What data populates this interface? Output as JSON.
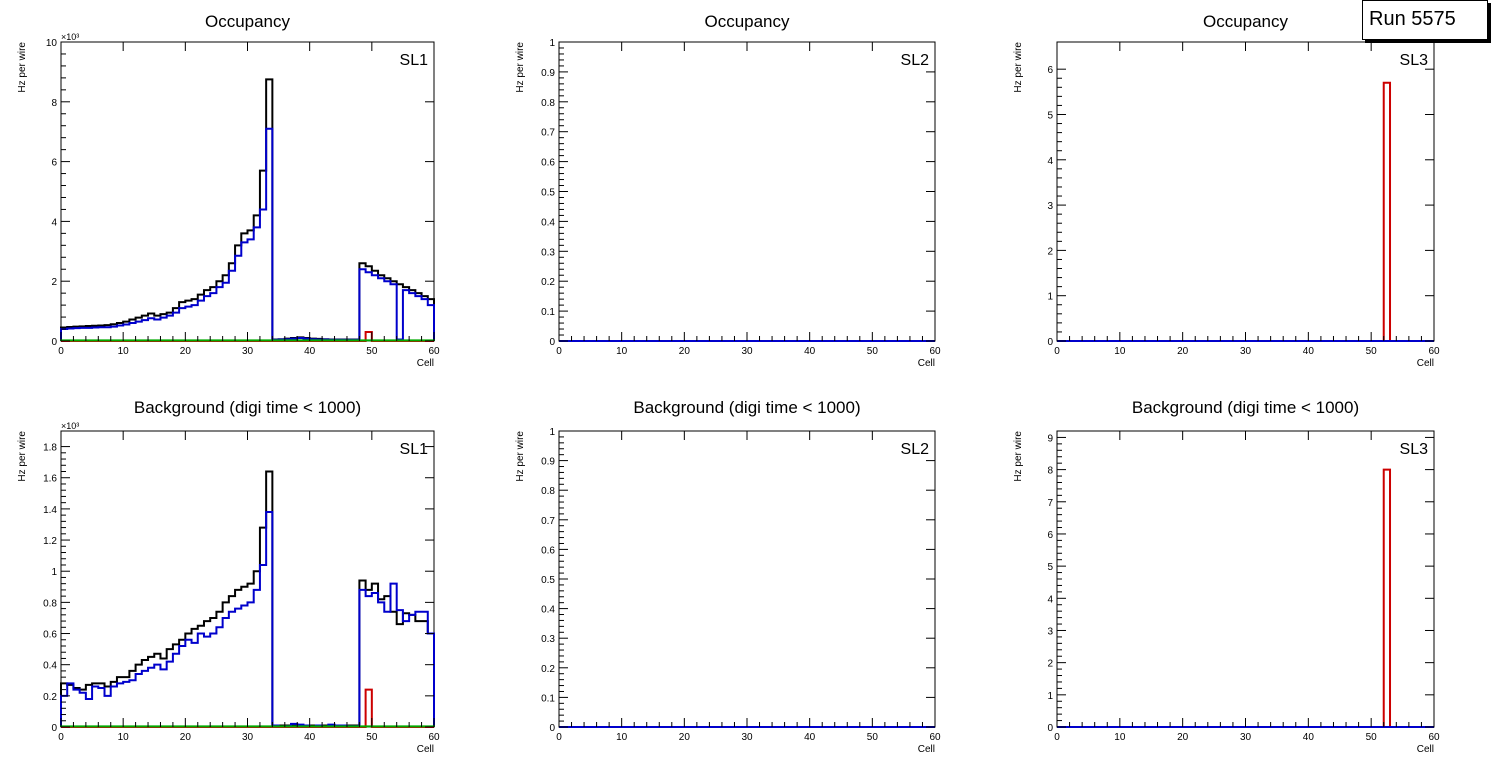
{
  "run_label": "Run 5575",
  "colors": {
    "total": "#000000",
    "blue": "#0000cc",
    "red": "#cc0000",
    "green": "#00aa00"
  },
  "chart_data": [
    {
      "type": "histogram",
      "title": "Occupancy",
      "panel_label": "SL1",
      "xlabel": "Cell",
      "ylabel": "Hz per wire",
      "exponent_label": "×10³",
      "xlim": [
        0,
        60
      ],
      "ylim": [
        0,
        10
      ],
      "xticks": [
        0,
        10,
        20,
        30,
        40,
        50,
        60
      ],
      "yticks": [
        0,
        2,
        4,
        6,
        8,
        10
      ],
      "x_start": 0,
      "bin_width": 1,
      "series": [
        {
          "name": "total",
          "color": "#000000",
          "values": [
            0.45,
            0.47,
            0.48,
            0.49,
            0.5,
            0.51,
            0.52,
            0.53,
            0.56,
            0.6,
            0.65,
            0.72,
            0.78,
            0.85,
            0.92,
            0.85,
            0.9,
            0.95,
            1.1,
            1.3,
            1.35,
            1.4,
            1.55,
            1.7,
            1.8,
            2.0,
            2.2,
            2.6,
            3.2,
            3.6,
            3.7,
            4.2,
            5.7,
            8.75,
            0.05,
            0.06,
            0.08,
            0.1,
            0.12,
            0.1,
            0.08,
            0.07,
            0.06,
            0.05,
            0.05,
            0.05,
            0.05,
            0.05,
            2.6,
            2.5,
            2.35,
            2.2,
            2.1,
            2.0,
            1.9,
            1.8,
            1.7,
            1.6,
            1.5,
            1.4
          ]
        },
        {
          "name": "blue",
          "color": "#0000cc",
          "values": [
            0.4,
            0.42,
            0.43,
            0.44,
            0.44,
            0.45,
            0.46,
            0.46,
            0.48,
            0.52,
            0.55,
            0.6,
            0.65,
            0.7,
            0.76,
            0.72,
            0.78,
            0.85,
            0.95,
            1.1,
            1.15,
            1.2,
            1.35,
            1.5,
            1.6,
            1.8,
            1.95,
            2.35,
            2.85,
            3.3,
            3.4,
            3.8,
            4.4,
            7.1,
            0.04,
            0.05,
            0.06,
            0.08,
            0.1,
            0.08,
            0.06,
            0.05,
            0.05,
            0.04,
            0.04,
            0.04,
            0.04,
            0.04,
            2.4,
            2.3,
            2.2,
            2.1,
            2.0,
            1.9,
            0.05,
            1.7,
            1.6,
            1.5,
            1.4,
            1.2
          ]
        },
        {
          "name": "red",
          "color": "#cc0000",
          "values": [
            0,
            0,
            0,
            0,
            0,
            0,
            0,
            0,
            0,
            0,
            0,
            0,
            0,
            0,
            0,
            0,
            0,
            0,
            0,
            0,
            0,
            0,
            0,
            0,
            0,
            0,
            0,
            0,
            0,
            0,
            0,
            0,
            0,
            0,
            0,
            0,
            0,
            0,
            0,
            0,
            0,
            0,
            0,
            0,
            0,
            0,
            0,
            0,
            0,
            0.3,
            0,
            0,
            0,
            0,
            0,
            0,
            0,
            0,
            0,
            0
          ]
        },
        {
          "name": "green",
          "color": "#00aa00",
          "values": [
            0.02,
            0.02,
            0.02,
            0.02,
            0.02,
            0.02,
            0.02,
            0.02,
            0.02,
            0.02,
            0.02,
            0.02,
            0.02,
            0.02,
            0.02,
            0.02,
            0.02,
            0.02,
            0.02,
            0.02,
            0.02,
            0.02,
            0.02,
            0.02,
            0.02,
            0.02,
            0.02,
            0.02,
            0.02,
            0.02,
            0.02,
            0.02,
            0.02,
            0.02,
            0.02,
            0.02,
            0.02,
            0.02,
            0.02,
            0.02,
            0.02,
            0.02,
            0.02,
            0.02,
            0.02,
            0.02,
            0.02,
            0.02,
            0.02,
            0.02,
            0.02,
            0.02,
            0.02,
            0.02,
            0.02,
            0.02,
            0.02,
            0.02,
            0.02,
            0.02
          ]
        }
      ]
    },
    {
      "type": "histogram",
      "title": "Occupancy",
      "panel_label": "SL2",
      "xlabel": "Cell",
      "ylabel": "Hz per wire",
      "exponent_label": "",
      "xlim": [
        0,
        60
      ],
      "ylim": [
        0,
        1
      ],
      "xticks": [
        0,
        10,
        20,
        30,
        40,
        50,
        60
      ],
      "yticks": [
        0,
        0.1,
        0.2,
        0.3,
        0.4,
        0.5,
        0.6,
        0.7,
        0.8,
        0.9,
        1
      ],
      "x_start": 0,
      "bin_width": 1,
      "series": [
        {
          "name": "blue",
          "color": "#0000cc",
          "values": [
            0,
            0,
            0,
            0,
            0,
            0,
            0,
            0,
            0,
            0,
            0,
            0,
            0,
            0,
            0,
            0,
            0,
            0,
            0,
            0,
            0,
            0,
            0,
            0,
            0,
            0,
            0,
            0,
            0,
            0,
            0,
            0,
            0,
            0,
            0,
            0,
            0,
            0,
            0,
            0,
            0,
            0,
            0,
            0,
            0,
            0,
            0,
            0,
            0,
            0,
            0,
            0,
            0,
            0,
            0,
            0,
            0,
            0,
            0,
            0
          ]
        }
      ]
    },
    {
      "type": "histogram",
      "title": "Occupancy",
      "panel_label": "SL3",
      "xlabel": "Cell",
      "ylabel": "Hz per wire",
      "exponent_label": "",
      "xlim": [
        0,
        60
      ],
      "ylim": [
        0,
        6.6
      ],
      "xticks": [
        0,
        10,
        20,
        30,
        40,
        50,
        60
      ],
      "yticks": [
        0,
        1,
        2,
        3,
        4,
        5,
        6
      ],
      "x_start": 0,
      "bin_width": 1,
      "series": [
        {
          "name": "red",
          "color": "#cc0000",
          "values": [
            0,
            0,
            0,
            0,
            0,
            0,
            0,
            0,
            0,
            0,
            0,
            0,
            0,
            0,
            0,
            0,
            0,
            0,
            0,
            0,
            0,
            0,
            0,
            0,
            0,
            0,
            0,
            0,
            0,
            0,
            0,
            0,
            0,
            0,
            0,
            0,
            0,
            0,
            0,
            0,
            0,
            0,
            0,
            0,
            0,
            0,
            0,
            0,
            0,
            0,
            0,
            0,
            5.7,
            0,
            0,
            0,
            0,
            0,
            0,
            0
          ]
        },
        {
          "name": "blue",
          "color": "#0000cc",
          "values": [
            0,
            0,
            0,
            0,
            0,
            0,
            0,
            0,
            0,
            0,
            0,
            0,
            0,
            0,
            0,
            0,
            0,
            0,
            0,
            0,
            0,
            0,
            0,
            0,
            0,
            0,
            0,
            0,
            0,
            0,
            0,
            0,
            0,
            0,
            0,
            0,
            0,
            0,
            0,
            0,
            0,
            0,
            0,
            0,
            0,
            0,
            0,
            0,
            0,
            0,
            0,
            0,
            0,
            0,
            0,
            0,
            0,
            0,
            0,
            0
          ]
        }
      ]
    },
    {
      "type": "histogram",
      "title": "Background (digi time < 1000)",
      "panel_label": "SL1",
      "xlabel": "Cell",
      "ylabel": "Hz per wire",
      "exponent_label": "×10³",
      "xlim": [
        0,
        60
      ],
      "ylim": [
        0,
        1.9
      ],
      "xticks": [
        0,
        10,
        20,
        30,
        40,
        50,
        60
      ],
      "yticks": [
        0,
        0.2,
        0.4,
        0.6,
        0.8,
        1,
        1.2,
        1.4,
        1.6,
        1.8
      ],
      "x_start": 0,
      "bin_width": 1,
      "series": [
        {
          "name": "total",
          "color": "#000000",
          "values": [
            0.28,
            0.27,
            0.25,
            0.24,
            0.27,
            0.28,
            0.28,
            0.26,
            0.29,
            0.32,
            0.32,
            0.36,
            0.4,
            0.43,
            0.45,
            0.47,
            0.44,
            0.5,
            0.53,
            0.56,
            0.6,
            0.63,
            0.65,
            0.68,
            0.7,
            0.74,
            0.8,
            0.84,
            0.88,
            0.9,
            0.92,
            1.0,
            1.28,
            1.64,
            0.01,
            0.01,
            0.01,
            0.01,
            0.01,
            0.01,
            0.01,
            0.01,
            0.01,
            0.01,
            0.01,
            0.01,
            0.01,
            0.01,
            0.94,
            0.88,
            0.92,
            0.82,
            0.84,
            0.74,
            0.66,
            0.73,
            0.72,
            0.68,
            0.68,
            0.6
          ]
        },
        {
          "name": "blue",
          "color": "#0000cc",
          "values": [
            0.2,
            0.28,
            0.24,
            0.22,
            0.18,
            0.26,
            0.25,
            0.2,
            0.26,
            0.28,
            0.29,
            0.3,
            0.34,
            0.36,
            0.38,
            0.4,
            0.37,
            0.42,
            0.47,
            0.52,
            0.56,
            0.54,
            0.6,
            0.58,
            0.6,
            0.64,
            0.7,
            0.74,
            0.76,
            0.78,
            0.8,
            0.88,
            1.04,
            1.38,
            0.01,
            0.0,
            0.005,
            0.02,
            0.015,
            0.01,
            0.0,
            0.01,
            0.0,
            0.015,
            0.01,
            0.01,
            0.005,
            0.005,
            0.88,
            0.84,
            0.86,
            0.8,
            0.74,
            0.92,
            0.75,
            0.68,
            0.72,
            0.74,
            0.74,
            0.6
          ]
        },
        {
          "name": "red",
          "color": "#cc0000",
          "values": [
            0,
            0,
            0,
            0,
            0,
            0,
            0,
            0,
            0,
            0,
            0,
            0,
            0,
            0,
            0,
            0,
            0,
            0,
            0,
            0,
            0,
            0,
            0,
            0,
            0,
            0,
            0,
            0,
            0,
            0,
            0,
            0,
            0,
            0,
            0,
            0,
            0,
            0,
            0,
            0,
            0,
            0,
            0,
            0,
            0,
            0,
            0,
            0,
            0,
            0.24,
            0,
            0,
            0,
            0,
            0,
            0,
            0,
            0,
            0,
            0
          ]
        },
        {
          "name": "green",
          "color": "#00aa00",
          "values": [
            0.004,
            0.004,
            0.004,
            0.004,
            0.004,
            0.004,
            0.004,
            0.004,
            0.004,
            0.004,
            0.004,
            0.004,
            0.004,
            0.004,
            0.004,
            0.004,
            0.004,
            0.004,
            0.004,
            0.004,
            0.004,
            0.004,
            0.004,
            0.004,
            0.004,
            0.004,
            0.004,
            0.004,
            0.004,
            0.004,
            0.004,
            0.004,
            0.004,
            0.004,
            0.004,
            0.004,
            0.004,
            0.004,
            0.004,
            0.004,
            0.004,
            0.004,
            0.004,
            0.004,
            0.004,
            0.004,
            0.004,
            0.004,
            0.004,
            0.004,
            0.004,
            0.004,
            0.004,
            0.004,
            0.004,
            0.004,
            0.004,
            0.004,
            0.004,
            0.004
          ]
        }
      ]
    },
    {
      "type": "histogram",
      "title": "Background (digi time < 1000)",
      "panel_label": "SL2",
      "xlabel": "Cell",
      "ylabel": "Hz per wire",
      "exponent_label": "",
      "xlim": [
        0,
        60
      ],
      "ylim": [
        0,
        1
      ],
      "xticks": [
        0,
        10,
        20,
        30,
        40,
        50,
        60
      ],
      "yticks": [
        0,
        0.1,
        0.2,
        0.3,
        0.4,
        0.5,
        0.6,
        0.7,
        0.8,
        0.9,
        1
      ],
      "x_start": 0,
      "bin_width": 1,
      "series": [
        {
          "name": "blue",
          "color": "#0000cc",
          "values": [
            0,
            0,
            0,
            0,
            0,
            0,
            0,
            0,
            0,
            0,
            0,
            0,
            0,
            0,
            0,
            0,
            0,
            0,
            0,
            0,
            0,
            0,
            0,
            0,
            0,
            0,
            0,
            0,
            0,
            0,
            0,
            0,
            0,
            0,
            0,
            0,
            0,
            0,
            0,
            0,
            0,
            0,
            0,
            0,
            0,
            0,
            0,
            0,
            0,
            0,
            0,
            0,
            0,
            0,
            0,
            0,
            0,
            0,
            0,
            0
          ]
        }
      ]
    },
    {
      "type": "histogram",
      "title": "Background (digi time < 1000)",
      "panel_label": "SL3",
      "xlabel": "Cell",
      "ylabel": "Hz per wire",
      "exponent_label": "",
      "xlim": [
        0,
        60
      ],
      "ylim": [
        0,
        9.2
      ],
      "xticks": [
        0,
        10,
        20,
        30,
        40,
        50,
        60
      ],
      "yticks": [
        0,
        1,
        2,
        3,
        4,
        5,
        6,
        7,
        8,
        9
      ],
      "x_start": 0,
      "bin_width": 1,
      "series": [
        {
          "name": "red",
          "color": "#cc0000",
          "values": [
            0,
            0,
            0,
            0,
            0,
            0,
            0,
            0,
            0,
            0,
            0,
            0,
            0,
            0,
            0,
            0,
            0,
            0,
            0,
            0,
            0,
            0,
            0,
            0,
            0,
            0,
            0,
            0,
            0,
            0,
            0,
            0,
            0,
            0,
            0,
            0,
            0,
            0,
            0,
            0,
            0,
            0,
            0,
            0,
            0,
            0,
            0,
            0,
            0,
            0,
            0,
            0,
            8.0,
            0,
            0,
            0,
            0,
            0,
            0,
            0
          ]
        },
        {
          "name": "blue",
          "color": "#0000cc",
          "values": [
            0,
            0,
            0,
            0,
            0,
            0,
            0,
            0,
            0,
            0,
            0,
            0,
            0,
            0,
            0,
            0,
            0,
            0,
            0,
            0,
            0,
            0,
            0,
            0,
            0,
            0,
            0,
            0,
            0,
            0,
            0,
            0,
            0,
            0,
            0,
            0,
            0,
            0,
            0,
            0,
            0,
            0,
            0,
            0,
            0,
            0,
            0,
            0,
            0,
            0,
            0,
            0,
            0,
            0,
            0,
            0,
            0,
            0,
            0,
            0
          ]
        }
      ]
    }
  ]
}
